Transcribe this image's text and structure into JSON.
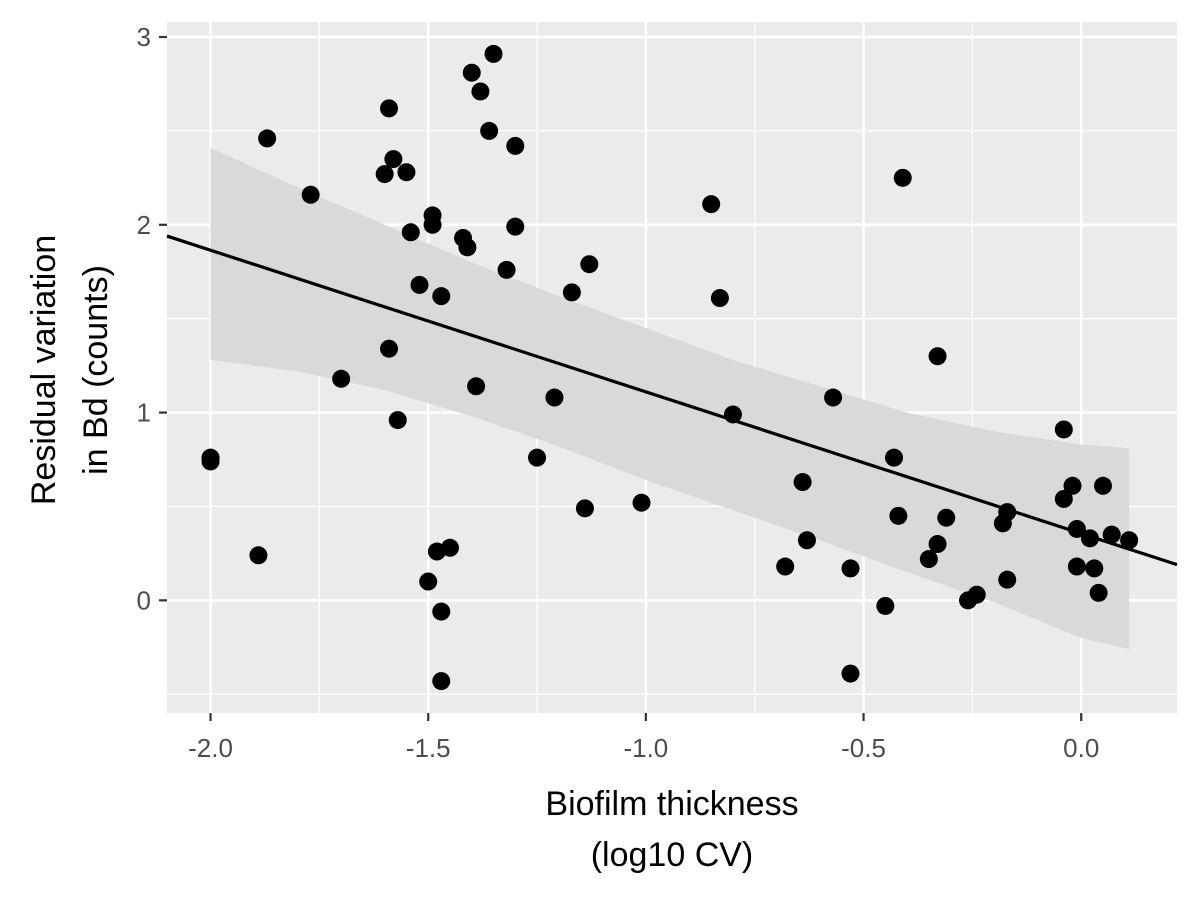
{
  "chart_data": {
    "type": "scatter",
    "title": "",
    "xlabel_lines": [
      "Biofilm thickness",
      "(log10 CV)"
    ],
    "ylabel_lines": [
      "Residual variation",
      "in Bd (counts)"
    ],
    "xlim": [
      -2.1,
      0.22
    ],
    "ylim": [
      -0.6,
      3.08
    ],
    "x_ticks": [
      -2.0,
      -1.5,
      -1.0,
      -0.5,
      0.0
    ],
    "x_tick_labels": [
      "-2.0",
      "-1.5",
      "-1.0",
      "-0.5",
      "0.0"
    ],
    "y_ticks": [
      0,
      1,
      2,
      3
    ],
    "y_tick_labels": [
      "0",
      "1",
      "2",
      "3"
    ],
    "x_minor": [
      -1.75,
      -1.25,
      -0.75,
      -0.25
    ],
    "y_minor": [
      -0.5,
      0.5,
      1.5,
      2.5
    ],
    "grid": true,
    "panel_color": "#ebebeb",
    "grid_color": "#ffffff",
    "point_color": "#000000",
    "points": [
      {
        "x": -2.0,
        "y": 0.74
      },
      {
        "x": -2.0,
        "y": 0.76
      },
      {
        "x": -1.89,
        "y": 0.24
      },
      {
        "x": -1.87,
        "y": 2.46
      },
      {
        "x": -1.77,
        "y": 2.16
      },
      {
        "x": -1.7,
        "y": 1.18
      },
      {
        "x": -1.6,
        "y": 2.27
      },
      {
        "x": -1.59,
        "y": 2.62
      },
      {
        "x": -1.59,
        "y": 1.34
      },
      {
        "x": -1.58,
        "y": 2.35
      },
      {
        "x": -1.57,
        "y": 0.96
      },
      {
        "x": -1.55,
        "y": 2.28
      },
      {
        "x": -1.54,
        "y": 1.96
      },
      {
        "x": -1.52,
        "y": 1.68
      },
      {
        "x": -1.5,
        "y": 0.1
      },
      {
        "x": -1.49,
        "y": 2.05
      },
      {
        "x": -1.49,
        "y": 2.0
      },
      {
        "x": -1.48,
        "y": 0.26
      },
      {
        "x": -1.47,
        "y": -0.06
      },
      {
        "x": -1.47,
        "y": 1.62
      },
      {
        "x": -1.47,
        "y": -0.43
      },
      {
        "x": -1.45,
        "y": 0.28
      },
      {
        "x": -1.42,
        "y": 1.93
      },
      {
        "x": -1.41,
        "y": 1.88
      },
      {
        "x": -1.4,
        "y": 2.81
      },
      {
        "x": -1.39,
        "y": 1.14
      },
      {
        "x": -1.38,
        "y": 2.71
      },
      {
        "x": -1.36,
        "y": 2.5
      },
      {
        "x": -1.35,
        "y": 2.91
      },
      {
        "x": -1.32,
        "y": 1.76
      },
      {
        "x": -1.3,
        "y": 2.42
      },
      {
        "x": -1.3,
        "y": 1.99
      },
      {
        "x": -1.25,
        "y": 0.76
      },
      {
        "x": -1.21,
        "y": 1.08
      },
      {
        "x": -1.17,
        "y": 1.64
      },
      {
        "x": -1.14,
        "y": 0.49
      },
      {
        "x": -1.13,
        "y": 1.79
      },
      {
        "x": -1.01,
        "y": 0.52
      },
      {
        "x": -0.85,
        "y": 2.11
      },
      {
        "x": -0.83,
        "y": 1.61
      },
      {
        "x": -0.8,
        "y": 0.99
      },
      {
        "x": -0.68,
        "y": 0.18
      },
      {
        "x": -0.64,
        "y": 0.63
      },
      {
        "x": -0.63,
        "y": 0.32
      },
      {
        "x": -0.57,
        "y": 1.08
      },
      {
        "x": -0.53,
        "y": 0.17
      },
      {
        "x": -0.53,
        "y": -0.39
      },
      {
        "x": -0.45,
        "y": -0.03
      },
      {
        "x": -0.43,
        "y": 0.76
      },
      {
        "x": -0.42,
        "y": 0.45
      },
      {
        "x": -0.41,
        "y": 2.25
      },
      {
        "x": -0.35,
        "y": 0.22
      },
      {
        "x": -0.33,
        "y": 0.3
      },
      {
        "x": -0.33,
        "y": 1.3
      },
      {
        "x": -0.31,
        "y": 0.44
      },
      {
        "x": -0.26,
        "y": 0.0
      },
      {
        "x": -0.24,
        "y": 0.03
      },
      {
        "x": -0.18,
        "y": 0.41
      },
      {
        "x": -0.17,
        "y": 0.11
      },
      {
        "x": -0.17,
        "y": 0.47
      },
      {
        "x": -0.04,
        "y": 0.91
      },
      {
        "x": -0.04,
        "y": 0.54
      },
      {
        "x": -0.02,
        "y": 0.61
      },
      {
        "x": -0.01,
        "y": 0.18
      },
      {
        "x": -0.01,
        "y": 0.38
      },
      {
        "x": 0.02,
        "y": 0.33
      },
      {
        "x": 0.03,
        "y": 0.17
      },
      {
        "x": 0.04,
        "y": 0.04
      },
      {
        "x": 0.05,
        "y": 0.61
      },
      {
        "x": 0.07,
        "y": 0.35
      },
      {
        "x": 0.11,
        "y": 0.32
      }
    ],
    "fit_line": {
      "x": [
        -2.1,
        0.22
      ],
      "y": [
        1.94,
        0.19
      ],
      "color": "#000000"
    },
    "confidence_band": {
      "color": "#d9d9d9",
      "upper": [
        {
          "x": -2.0,
          "y": 2.41
        },
        {
          "x": -1.8,
          "y": 2.2
        },
        {
          "x": -1.6,
          "y": 2.0
        },
        {
          "x": -1.4,
          "y": 1.8
        },
        {
          "x": -1.2,
          "y": 1.62
        },
        {
          "x": -1.0,
          "y": 1.45
        },
        {
          "x": -0.8,
          "y": 1.28
        },
        {
          "x": -0.6,
          "y": 1.14
        },
        {
          "x": -0.4,
          "y": 1.0
        },
        {
          "x": -0.2,
          "y": 0.9
        },
        {
          "x": 0.0,
          "y": 0.83
        },
        {
          "x": 0.11,
          "y": 0.81
        }
      ],
      "lower": [
        {
          "x": -2.0,
          "y": 1.28
        },
        {
          "x": -1.8,
          "y": 1.22
        },
        {
          "x": -1.6,
          "y": 1.12
        },
        {
          "x": -1.4,
          "y": 0.98
        },
        {
          "x": -1.2,
          "y": 0.82
        },
        {
          "x": -1.0,
          "y": 0.64
        },
        {
          "x": -0.8,
          "y": 0.48
        },
        {
          "x": -0.6,
          "y": 0.32
        },
        {
          "x": -0.4,
          "y": 0.15
        },
        {
          "x": -0.2,
          "y": -0.01
        },
        {
          "x": 0.0,
          "y": -0.2
        },
        {
          "x": 0.11,
          "y": -0.26
        }
      ]
    }
  }
}
